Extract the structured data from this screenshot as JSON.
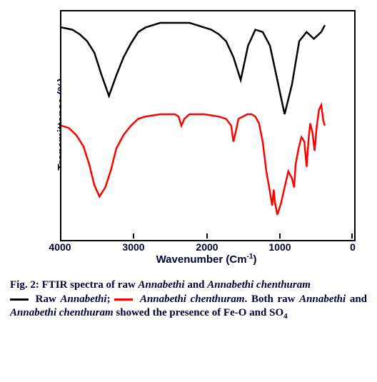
{
  "chart": {
    "type": "line",
    "background_color": "#ffffff",
    "border_color": "#000000",
    "border_width": 2,
    "xlim": [
      4000,
      0
    ],
    "ylim": [
      0,
      100
    ],
    "xticks": [
      4000,
      3000,
      2000,
      1000,
      0
    ],
    "xlabel_html": "Wavenumber (Cm<sup>-1</sup>)",
    "ylabel": "Transmittance (%)",
    "axis_label_fontsize": 15,
    "tick_fontsize": 14,
    "tick_fontweight": "bold",
    "tick_fontfamily": "Arial",
    "line_width": 2.5,
    "series": [
      {
        "name": "Raw Annabethi",
        "color": "#000000",
        "x": [
          4000,
          3850,
          3750,
          3650,
          3550,
          3450,
          3350,
          3250,
          3150,
          3050,
          2950,
          2850,
          2750,
          2650,
          2550,
          2450,
          2350,
          2250,
          2150,
          2050,
          1950,
          1850,
          1750,
          1650,
          1550,
          1450,
          1350,
          1250,
          1150,
          1050,
          950,
          850,
          750,
          650,
          550,
          450,
          400
        ],
        "y": [
          93,
          92,
          90,
          87,
          82,
          72,
          63,
          72,
          80,
          86,
          91,
          93,
          94,
          95,
          95,
          95,
          95,
          95,
          94,
          93,
          92,
          90,
          87,
          80,
          70,
          85,
          92,
          91,
          85,
          70,
          55,
          68,
          87,
          91,
          88,
          91,
          94
        ]
      },
      {
        "name": "Annabethi chenthuram",
        "color": "#ff0000",
        "x": [
          4000,
          3900,
          3800,
          3700,
          3620,
          3550,
          3480,
          3400,
          3320,
          3250,
          3150,
          3050,
          2950,
          2850,
          2750,
          2650,
          2550,
          2450,
          2400,
          2360,
          2320,
          2250,
          2150,
          2050,
          1950,
          1850,
          1750,
          1680,
          1650,
          1620,
          1580,
          1520,
          1460,
          1400,
          1350,
          1300,
          1250,
          1200,
          1150,
          1120,
          1100,
          1080,
          1050,
          1000,
          950,
          900,
          850,
          820,
          800,
          760,
          720,
          680,
          650,
          620,
          600,
          570,
          540,
          510,
          480,
          450,
          420,
          400
        ],
        "y": [
          50,
          49,
          46,
          41,
          33,
          24,
          19,
          23,
          31,
          40,
          46,
          50,
          53,
          54,
          54.5,
          55,
          55,
          55,
          54,
          50,
          53,
          55,
          55,
          55,
          54.5,
          54,
          53,
          50,
          43,
          47,
          53,
          54,
          55,
          55,
          54,
          51,
          43,
          30,
          21,
          15,
          22,
          16,
          11,
          16,
          23,
          30,
          27,
          23,
          33,
          40,
          45,
          43,
          32,
          45,
          51,
          47,
          39,
          50,
          57,
          59,
          52,
          50
        ]
      }
    ]
  },
  "xtick_labels": {
    "t0": "4000",
    "t1": "3000",
    "t2": "2000",
    "t3": "1000",
    "t4": "0"
  },
  "caption": {
    "fig_prefix": "Fig. 2: FTIR spectra of raw ",
    "annabethi": "Annabethi",
    "and_word": " and ",
    "chenthuram": "Annabethi chenthuram",
    "raw_label": " Raw ",
    "semicolon": "; ",
    "period": ". ",
    "both_raw": "Both raw ",
    "showed": " showed the presence of Fe-O and SO",
    "four": "4",
    "legend_raw_color": "#000000",
    "legend_chen_color": "#ff0000",
    "text_color": "#000033",
    "fontsize": 15,
    "fontfamily": "Times New Roman"
  }
}
